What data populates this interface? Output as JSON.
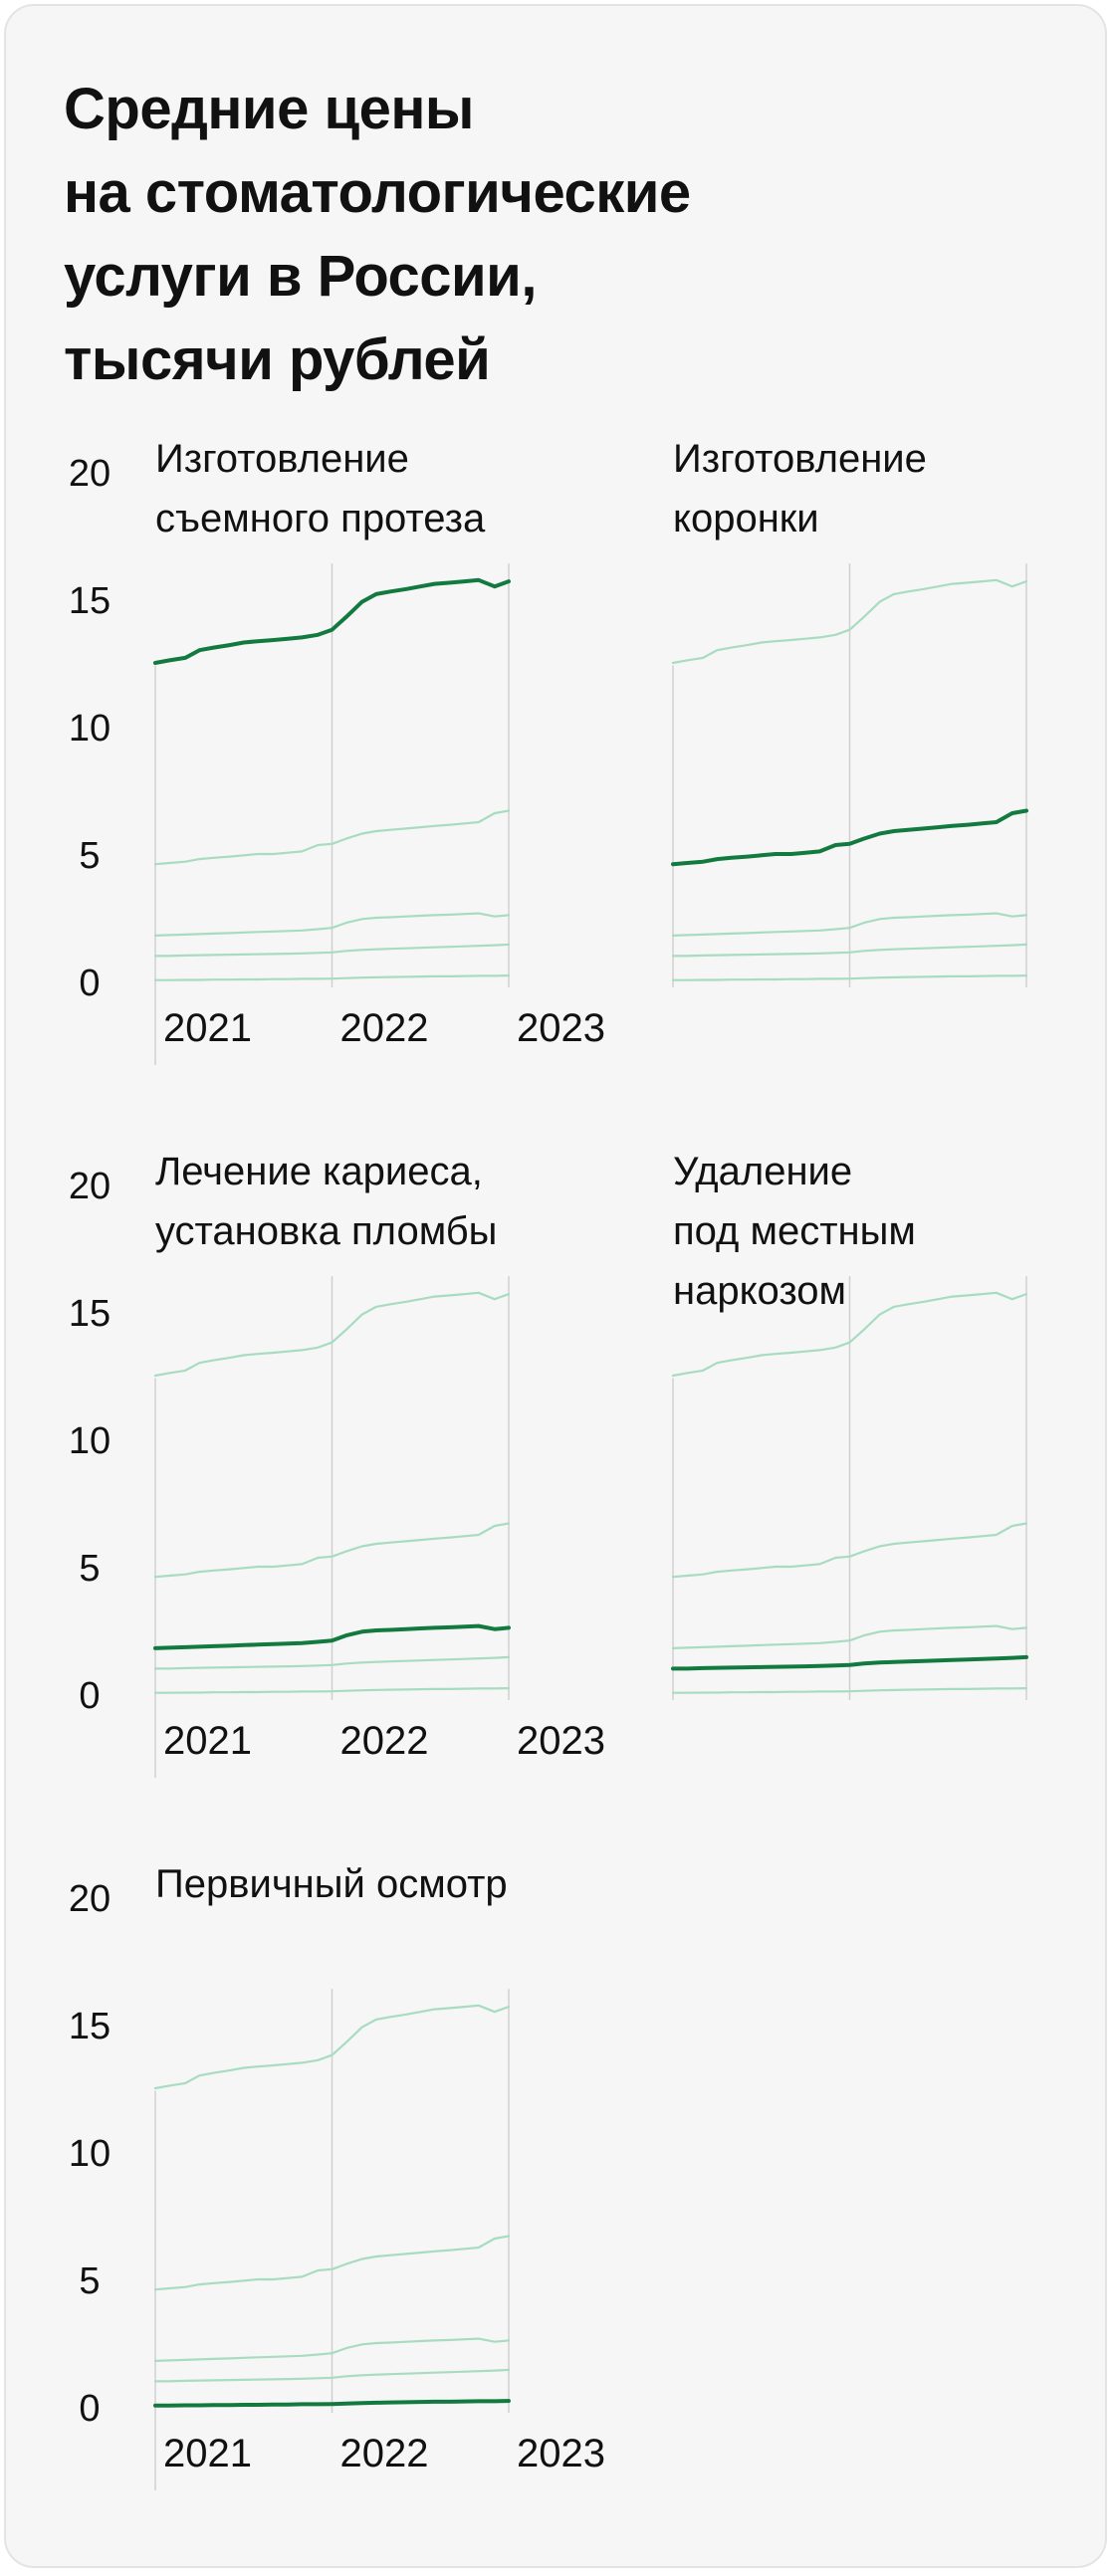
{
  "title_lines": [
    "Средние цены",
    "на стоматологические",
    "услуги в России,",
    "тысячи рублей"
  ],
  "colors": {
    "highlight": "#137a3f",
    "context": "#a8dcc0",
    "grid": "#d0d0d0",
    "text": "#111111",
    "background": "#f6f6f6"
  },
  "chart_data": {
    "type": "line",
    "layout": "small-multiples",
    "title": "Средние цены на стоматологические услуги в России, тысячи рублей",
    "ylim": [
      0,
      20
    ],
    "yticks": [
      0,
      5,
      10,
      15,
      20
    ],
    "xticks": [
      "2021",
      "2022",
      "2023"
    ],
    "x": [
      2021.0,
      2021.08,
      2021.17,
      2021.25,
      2021.33,
      2021.42,
      2021.5,
      2021.58,
      2021.67,
      2021.75,
      2021.83,
      2021.92,
      2022.0,
      2022.08,
      2022.17,
      2022.25,
      2022.33,
      2022.42,
      2022.5,
      2022.58,
      2022.67,
      2022.75,
      2022.83,
      2022.92,
      2023.0
    ],
    "series": [
      {
        "name": "Изготовление съемного протеза",
        "values": [
          12.5,
          12.6,
          12.7,
          13.0,
          13.1,
          13.2,
          13.3,
          13.35,
          13.4,
          13.45,
          13.5,
          13.6,
          13.8,
          14.3,
          14.9,
          15.2,
          15.3,
          15.4,
          15.5,
          15.6,
          15.65,
          15.7,
          15.75,
          15.5,
          15.7
        ]
      },
      {
        "name": "Изготовление коронки",
        "values": [
          4.6,
          4.65,
          4.7,
          4.8,
          4.85,
          4.9,
          4.95,
          5.0,
          5.0,
          5.05,
          5.1,
          5.35,
          5.4,
          5.6,
          5.8,
          5.9,
          5.95,
          6.0,
          6.05,
          6.1,
          6.15,
          6.2,
          6.25,
          6.6,
          6.7
        ]
      },
      {
        "name": "Лечение кариеса, установка пломбы",
        "values": [
          1.8,
          1.82,
          1.84,
          1.86,
          1.88,
          1.9,
          1.92,
          1.94,
          1.96,
          1.98,
          2.0,
          2.05,
          2.1,
          2.3,
          2.45,
          2.5,
          2.52,
          2.55,
          2.58,
          2.6,
          2.62,
          2.65,
          2.67,
          2.55,
          2.6
        ]
      },
      {
        "name": "Удаление под местным наркозом",
        "values": [
          1.0,
          1.0,
          1.02,
          1.03,
          1.04,
          1.05,
          1.06,
          1.07,
          1.08,
          1.09,
          1.1,
          1.12,
          1.14,
          1.2,
          1.24,
          1.26,
          1.28,
          1.3,
          1.32,
          1.34,
          1.36,
          1.38,
          1.4,
          1.42,
          1.45
        ]
      },
      {
        "name": "Первичный осмотр",
        "values": [
          0.05,
          0.05,
          0.06,
          0.06,
          0.07,
          0.07,
          0.08,
          0.08,
          0.09,
          0.09,
          0.1,
          0.1,
          0.11,
          0.13,
          0.15,
          0.16,
          0.17,
          0.18,
          0.19,
          0.2,
          0.2,
          0.21,
          0.22,
          0.22,
          0.23
        ]
      }
    ],
    "panels": [
      {
        "series": 0,
        "title_lines": [
          "Изготовление",
          "съемного протеза"
        ]
      },
      {
        "series": 1,
        "title_lines": [
          "Изготовление",
          "коронки"
        ]
      },
      {
        "series": 2,
        "title_lines": [
          "Лечение кариеса,",
          "установка пломбы"
        ]
      },
      {
        "series": 3,
        "title_lines": [
          "Удаление",
          "под местным",
          "наркозом"
        ]
      },
      {
        "series": 4,
        "title_lines": [
          "Первичный осмотр"
        ]
      }
    ],
    "grid": "vertical lines at year boundaries"
  }
}
